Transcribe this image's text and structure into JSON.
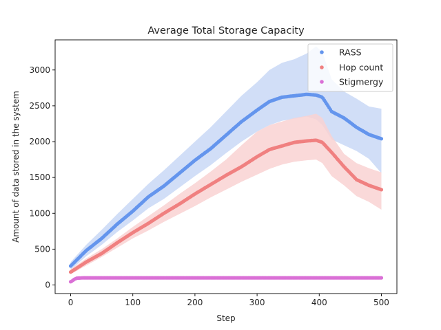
{
  "chart_data": {
    "type": "scatter",
    "title": "Average Total Storage Capacity",
    "xlabel": "Step",
    "ylabel": "Amount of data stored in the system",
    "xlim": [
      -25,
      525
    ],
    "ylim": [
      -120,
      3420
    ],
    "xticks": [
      0,
      100,
      200,
      300,
      400,
      500
    ],
    "yticks": [
      0,
      500,
      1000,
      1500,
      2000,
      2500,
      3000
    ],
    "grid": false,
    "legend_position": "top-right",
    "series": [
      {
        "name": "RASS",
        "color": "#6495ED",
        "band_color": "#C9D8F6",
        "x": [
          0,
          25,
          50,
          75,
          100,
          125,
          150,
          175,
          200,
          225,
          250,
          275,
          300,
          320,
          340,
          360,
          380,
          395,
          405,
          420,
          440,
          460,
          480,
          500
        ],
        "y": [
          265,
          480,
          650,
          850,
          1030,
          1230,
          1380,
          1560,
          1740,
          1900,
          2090,
          2280,
          2440,
          2560,
          2620,
          2640,
          2660,
          2650,
          2620,
          2420,
          2330,
          2200,
          2100,
          2040
        ],
        "band_low": [
          210,
          400,
          560,
          740,
          900,
          1070,
          1200,
          1360,
          1520,
          1670,
          1840,
          2000,
          2140,
          2230,
          2290,
          2320,
          2350,
          2310,
          2230,
          2030,
          1950,
          1870,
          1760,
          1560
        ],
        "band_high": [
          320,
          560,
          770,
          990,
          1200,
          1410,
          1600,
          1800,
          2000,
          2200,
          2420,
          2640,
          2830,
          3000,
          3100,
          3150,
          3230,
          3330,
          3250,
          2870,
          2700,
          2600,
          2490,
          2460
        ]
      },
      {
        "name": "Hop count",
        "color": "#F08080",
        "band_color": "#F9D2D2",
        "x": [
          0,
          25,
          50,
          75,
          100,
          125,
          150,
          175,
          200,
          225,
          250,
          275,
          300,
          320,
          340,
          360,
          380,
          395,
          405,
          420,
          440,
          460,
          480,
          500
        ],
        "y": [
          180,
          320,
          440,
          590,
          730,
          860,
          1000,
          1130,
          1270,
          1400,
          1530,
          1650,
          1790,
          1890,
          1940,
          1990,
          2010,
          2020,
          1990,
          1850,
          1650,
          1470,
          1390,
          1330
        ],
        "band_low": [
          150,
          270,
          390,
          520,
          650,
          760,
          880,
          990,
          1100,
          1220,
          1330,
          1440,
          1540,
          1620,
          1680,
          1720,
          1740,
          1750,
          1700,
          1520,
          1390,
          1240,
          1160,
          1050
        ],
        "band_high": [
          220,
          370,
          500,
          650,
          810,
          960,
          1110,
          1270,
          1420,
          1580,
          1750,
          1950,
          2140,
          2230,
          2280,
          2330,
          2360,
          2390,
          2330,
          2080,
          1830,
          1700,
          1630,
          1570
        ]
      },
      {
        "name": "Stigmergy",
        "color": "#DA70D6",
        "band_color": "#F4D0F2",
        "x": [
          0,
          3,
          6,
          10,
          20,
          50,
          100,
          200,
          300,
          400,
          500
        ],
        "y": [
          45,
          60,
          80,
          95,
          100,
          100,
          100,
          100,
          100,
          100,
          100
        ],
        "band_low": [
          40,
          55,
          75,
          90,
          95,
          95,
          95,
          95,
          95,
          95,
          95
        ],
        "band_high": [
          50,
          65,
          85,
          100,
          105,
          105,
          105,
          105,
          105,
          105,
          105
        ]
      }
    ]
  }
}
